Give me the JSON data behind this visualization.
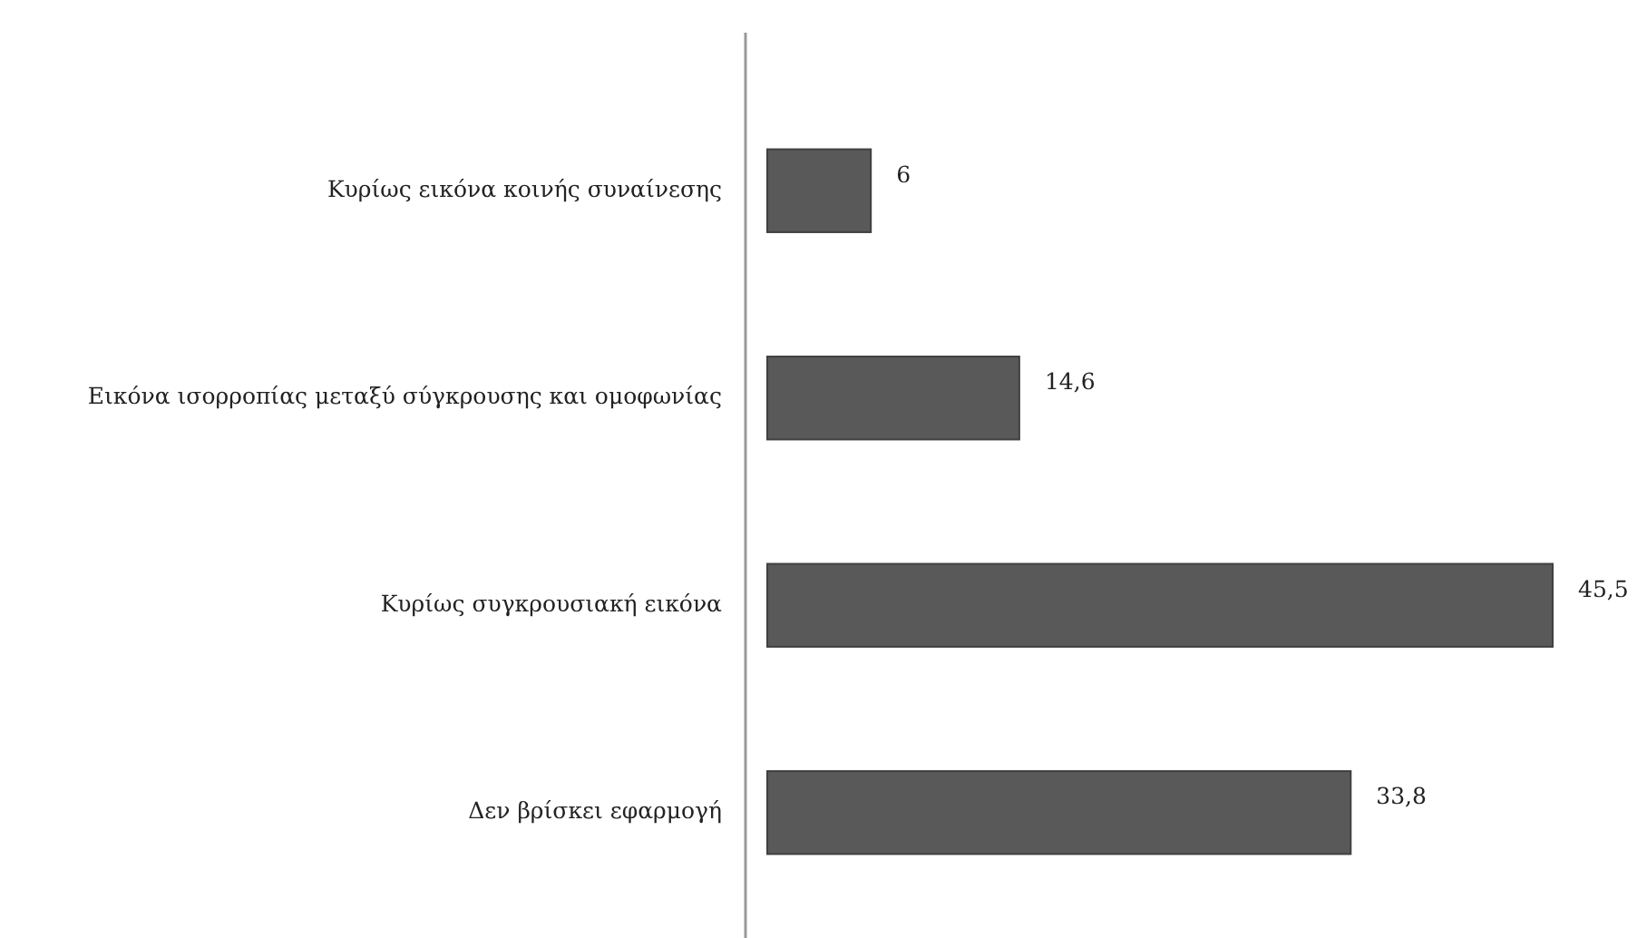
{
  "chart_data": {
    "type": "bar",
    "orientation": "horizontal",
    "categories": [
      "Κυρίως εικόνα κοινής συναίνεσης",
      "Εικόνα ισορροπίας μεταξύ σύγκρουσης και ομοφωνίας",
      "Κυρίως συγκρουσιακή εικόνα",
      "Δεν βρίσκει εφαρμογή"
    ],
    "values": [
      6,
      14.6,
      45.5,
      33.8
    ],
    "color": "#595959",
    "data_labels": true,
    "value_labels": [
      "6",
      "14,6",
      "45,5",
      "33,8"
    ]
  }
}
